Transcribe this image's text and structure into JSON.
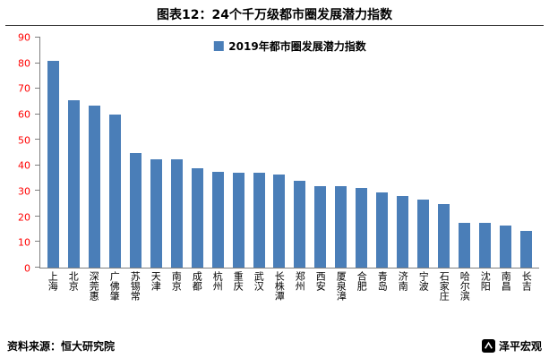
{
  "title": "图表12：24个千万级都市圈发展潜力指数",
  "legend_label": "2019年都市圈发展潜力指数",
  "source": "资料来源：恒大研究院",
  "brand": "泽平宏观",
  "colors": {
    "bar": "#4a7eb8",
    "y_label": "#ff0000",
    "axis": "#7f7f7f"
  },
  "chart_data": {
    "type": "bar",
    "title": "24个千万级都市圈发展潜力指数",
    "legend": [
      "2019年都市圈发展潜力指数"
    ],
    "legend_position": "top-center",
    "grid": false,
    "categories": [
      "上海",
      "北京",
      "深莞惠",
      "广佛肇",
      "苏锡常",
      "天津",
      "南京",
      "成都",
      "杭州",
      "重庆",
      "武汉",
      "长株潭",
      "郑州",
      "西安",
      "厦泉漳",
      "合肥",
      "青岛",
      "济南",
      "宁波",
      "石家庄",
      "哈尔滨",
      "沈阳",
      "南昌",
      "长吉"
    ],
    "values": [
      81,
      65.5,
      63.5,
      60,
      45,
      42.5,
      42.5,
      39,
      37.5,
      37,
      37,
      36.5,
      34,
      32,
      32,
      31,
      29.5,
      28,
      26.5,
      25,
      17.5,
      17.5,
      16.5,
      14.5
    ],
    "xlabel": "",
    "ylabel": "",
    "ylim": [
      0,
      90
    ],
    "yticks": [
      0,
      10,
      20,
      30,
      40,
      50,
      60,
      70,
      80,
      90
    ]
  }
}
